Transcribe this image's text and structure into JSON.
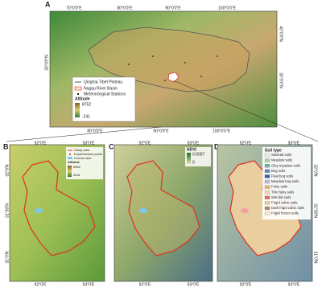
{
  "panel_a": {
    "label": "A",
    "top_ticks": [
      "70°0'0\"E",
      "80°0'0\"E",
      "90°0'0\"E",
      "100°0'0\"E"
    ],
    "bottom_ticks": [
      "80°0'0\"E",
      "90°0'0\"E",
      "100°0'0\"E"
    ],
    "left_ticks": [
      "30°0'0\"N"
    ],
    "right_ticks": [
      "40°0'0\"N",
      "30°0'0\"N"
    ],
    "legend": {
      "items": [
        "Qinghai-Tibet Plateau",
        "Nagqu River Basin",
        "Meteorological Stations"
      ],
      "ramp_title": "Altitude",
      "ramp_high": "8752",
      "ramp_low": "-241"
    }
  },
  "panel_b": {
    "label": "B",
    "top_ticks": [
      "92°0'E",
      "93°0'E"
    ],
    "bottom_ticks": [
      "92°0'E",
      "93°0'E"
    ],
    "left_ticks": [
      "32°0'N",
      "31°30'N",
      "31°0'N"
    ],
    "legend": {
      "items": [
        "Study area",
        "Experimental points",
        "Cuona Lake"
      ],
      "ramp_title": "Altitude",
      "ramp_high": "5962",
      "ramp_low": "4041"
    }
  },
  "panel_c": {
    "label": "C",
    "top_ticks": [
      "92°0'E",
      "93°0'E"
    ],
    "bottom_ticks": [
      "92°0'E",
      "93°0'E"
    ],
    "legend": {
      "ramp_title": "NDVI",
      "ramp_high": "0.9057",
      "ramp_low": "0"
    }
  },
  "panel_d": {
    "label": "D",
    "top_ticks": [
      "92°0'E",
      "93°0'E"
    ],
    "bottom_ticks": [
      "92°0'E",
      "93°0'E"
    ],
    "right_ticks": [
      "32°0'N",
      "31°30'N",
      "31°0'N"
    ],
    "legend": {
      "title": "Soil type",
      "items": [
        "Skeletal soils",
        "Meadow soils",
        "Gley meadow soils",
        "Bog soils",
        "Peat bog soils",
        "Meadow bog soils",
        "Fulvy soils",
        "Thin fulvy soils",
        "Wet felt soils",
        "Frigid calcic soils",
        "Dark frigid calcic soils",
        "Frigid frozen soils"
      ]
    }
  }
}
